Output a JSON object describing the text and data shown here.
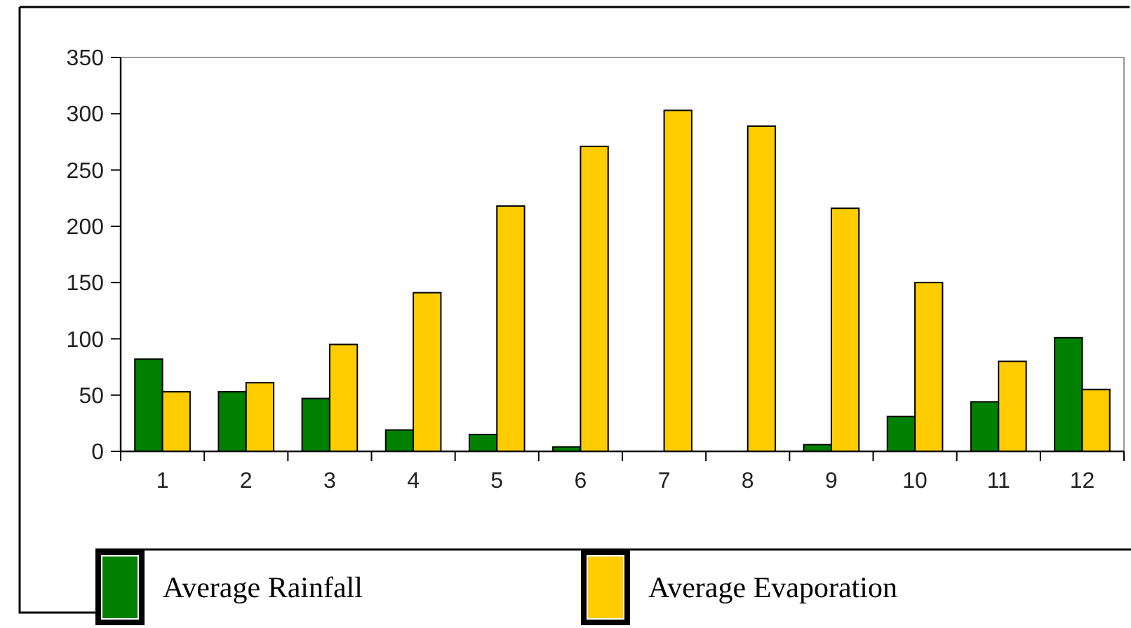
{
  "chart_data": {
    "type": "bar",
    "categories": [
      "1",
      "2",
      "3",
      "4",
      "5",
      "6",
      "7",
      "8",
      "9",
      "10",
      "11",
      "12"
    ],
    "series": [
      {
        "name": "Average Rainfall",
        "color": "#008000",
        "values": [
          82,
          53,
          47,
          19,
          15,
          4,
          0,
          0,
          6,
          31,
          44,
          101
        ]
      },
      {
        "name": "Average Evaporation",
        "color": "#ffcc00",
        "values": [
          53,
          61,
          95,
          141,
          218,
          271,
          303,
          289,
          216,
          150,
          80,
          55
        ]
      }
    ],
    "ylim": [
      0,
      350
    ],
    "yticks": [
      0,
      50,
      100,
      150,
      200,
      250,
      300,
      350
    ],
    "grid": false,
    "legend": "bottom"
  }
}
